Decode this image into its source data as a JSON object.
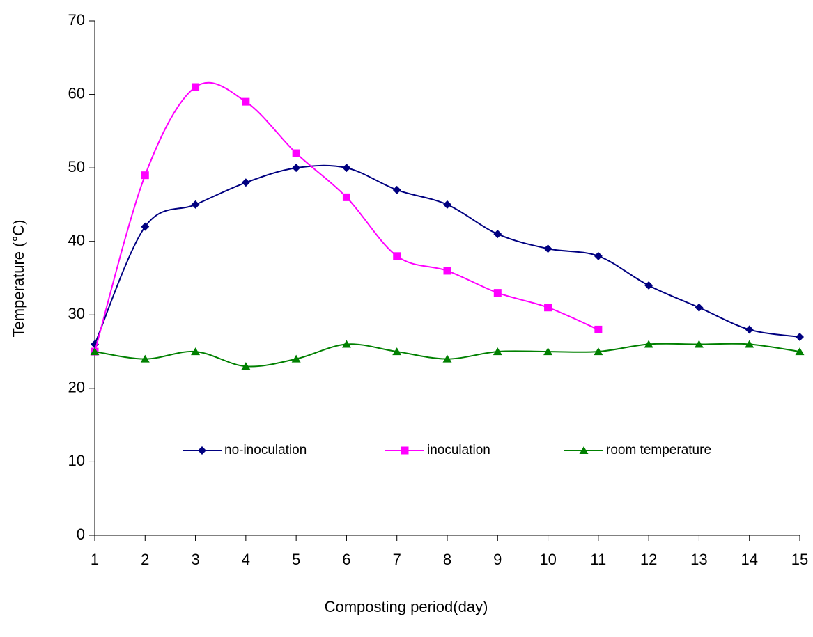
{
  "chart_data": {
    "type": "line",
    "x_label": "Composting period(day)",
    "y_label": "Temperature (°C)",
    "x": [
      1,
      2,
      3,
      4,
      5,
      6,
      7,
      8,
      9,
      10,
      11,
      12,
      13,
      14,
      15
    ],
    "xlim": [
      1,
      15
    ],
    "xticks": [
      1,
      2,
      3,
      4,
      5,
      6,
      7,
      8,
      9,
      10,
      11,
      12,
      13,
      14,
      15
    ],
    "ylim": [
      0,
      70
    ],
    "yticks": [
      0,
      10,
      20,
      30,
      40,
      50,
      60,
      70
    ],
    "grid": false,
    "smooth": true,
    "legend": "center",
    "series": [
      {
        "name": "no-inoculation",
        "color": "#000080",
        "marker": "diamond",
        "values": [
          26,
          42,
          45,
          48,
          50,
          50,
          47,
          45,
          41,
          39,
          38,
          34,
          31,
          28,
          27
        ]
      },
      {
        "name": "inoculation",
        "color": "#ff00ff",
        "marker": "square",
        "values": [
          25,
          49,
          61,
          59,
          52,
          46,
          38,
          36,
          33,
          31,
          28,
          null,
          null,
          null,
          null
        ]
      },
      {
        "name": "room temperature",
        "color": "#008000",
        "marker": "triangle",
        "values": [
          25,
          24,
          25,
          23,
          24,
          26,
          25,
          24,
          25,
          25,
          25,
          26,
          26,
          26,
          25
        ]
      }
    ]
  }
}
